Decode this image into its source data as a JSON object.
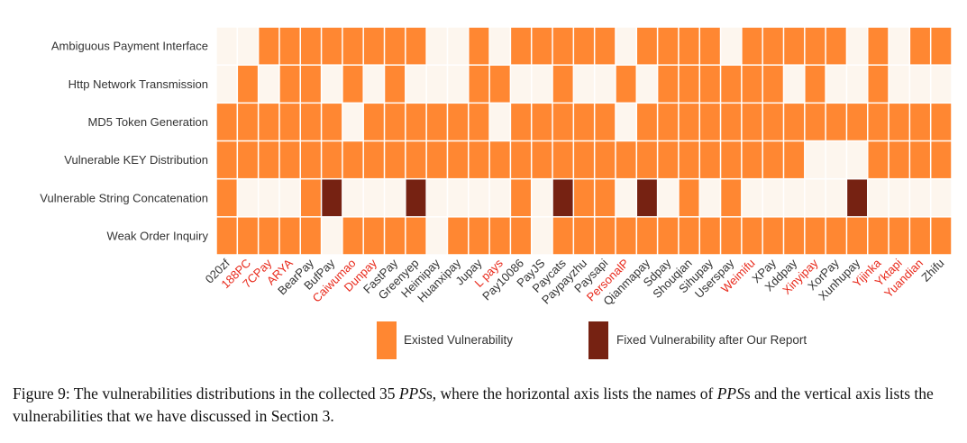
{
  "chart_data": {
    "type": "heatmap",
    "rows": [
      "Ambiguous Payment Interface",
      "Http Network Transmission",
      "MD5 Token Generation",
      "Vulnerable KEY Distribution",
      "Vulnerable String Concatenation",
      "Weak Order Inquiry"
    ],
    "columns": [
      {
        "name": "020zf",
        "highlight": false
      },
      {
        "name": "188PC",
        "highlight": true
      },
      {
        "name": "7CPay",
        "highlight": true
      },
      {
        "name": "ARYA",
        "highlight": true
      },
      {
        "name": "BearPay",
        "highlight": false
      },
      {
        "name": "BufPay",
        "highlight": false
      },
      {
        "name": "Caiwumao",
        "highlight": true
      },
      {
        "name": "Dunpay",
        "highlight": true
      },
      {
        "name": "FastPay",
        "highlight": false
      },
      {
        "name": "Greenyep",
        "highlight": false
      },
      {
        "name": "Heimipay",
        "highlight": false
      },
      {
        "name": "Huanxipay",
        "highlight": false
      },
      {
        "name": "Jupay",
        "highlight": false
      },
      {
        "name": "L pays",
        "highlight": true
      },
      {
        "name": "Pay10086",
        "highlight": false
      },
      {
        "name": "PayJS",
        "highlight": false
      },
      {
        "name": "Paycats",
        "highlight": false
      },
      {
        "name": "Paypayzhu",
        "highlight": false
      },
      {
        "name": "Paysapi",
        "highlight": false
      },
      {
        "name": "PersonalP",
        "highlight": true
      },
      {
        "name": "Qianmapay",
        "highlight": false
      },
      {
        "name": "Sdpay",
        "highlight": false
      },
      {
        "name": "Shouqian",
        "highlight": false
      },
      {
        "name": "Sihupay",
        "highlight": false
      },
      {
        "name": "Userspay",
        "highlight": false
      },
      {
        "name": "Weimifu",
        "highlight": true
      },
      {
        "name": "XPay",
        "highlight": false
      },
      {
        "name": "Xddpay",
        "highlight": false
      },
      {
        "name": "Xinyipay",
        "highlight": true
      },
      {
        "name": "XorPay",
        "highlight": false
      },
      {
        "name": "Xunhupay",
        "highlight": false
      },
      {
        "name": "Yijinka",
        "highlight": true
      },
      {
        "name": "Yktapi",
        "highlight": true
      },
      {
        "name": "Yuandian",
        "highlight": true
      },
      {
        "name": "Zhifu",
        "highlight": false
      }
    ],
    "matrix": [
      [
        0,
        0,
        1,
        1,
        1,
        1,
        1,
        1,
        1,
        1,
        0,
        0,
        1,
        0,
        1,
        1,
        1,
        1,
        1,
        0,
        1,
        1,
        1,
        1,
        0,
        1,
        1,
        1,
        1,
        1,
        0,
        1,
        0,
        1,
        1
      ],
      [
        0,
        1,
        0,
        1,
        1,
        0,
        1,
        0,
        1,
        0,
        0,
        0,
        1,
        1,
        0,
        0,
        1,
        0,
        0,
        1,
        0,
        1,
        1,
        1,
        1,
        1,
        1,
        0,
        1,
        0,
        0,
        1,
        0,
        0,
        0
      ],
      [
        1,
        1,
        1,
        1,
        1,
        1,
        0,
        1,
        1,
        1,
        1,
        1,
        1,
        0,
        1,
        1,
        1,
        1,
        1,
        0,
        1,
        1,
        1,
        1,
        1,
        1,
        1,
        1,
        1,
        1,
        1,
        1,
        1,
        1,
        1
      ],
      [
        1,
        1,
        1,
        1,
        1,
        1,
        1,
        1,
        1,
        1,
        1,
        1,
        1,
        1,
        1,
        1,
        1,
        1,
        1,
        1,
        1,
        1,
        1,
        1,
        1,
        1,
        1,
        1,
        0,
        0,
        0,
        1,
        1,
        1,
        1
      ],
      [
        1,
        0,
        0,
        0,
        1,
        2,
        0,
        0,
        0,
        2,
        0,
        0,
        0,
        0,
        1,
        0,
        2,
        1,
        1,
        0,
        2,
        0,
        1,
        0,
        1,
        0,
        0,
        0,
        0,
        0,
        2,
        0,
        0,
        0,
        0
      ],
      [
        1,
        1,
        1,
        1,
        1,
        0,
        1,
        1,
        1,
        1,
        0,
        1,
        1,
        1,
        1,
        0,
        1,
        1,
        1,
        1,
        1,
        1,
        1,
        1,
        1,
        1,
        1,
        1,
        1,
        1,
        1,
        1,
        1,
        1,
        1
      ]
    ],
    "value_meaning": {
      "0": "none",
      "1": "Existed Vulnerability",
      "2": "Fixed Vulnerability after Our Report"
    },
    "legend": [
      {
        "label": "Existed Vulnerability",
        "color": "#FF8732"
      },
      {
        "label": "Fixed Vulnerability after Our Report",
        "color": "#762212"
      }
    ],
    "legend_position": "bottom",
    "colors": {
      "existed": "#FF8732",
      "fixed": "#762212",
      "empty": "#FDF6EE",
      "highlight_label": "#E8281A",
      "normal_label": "#333333"
    }
  },
  "caption": {
    "prefix": "Figure 9: The vulnerabilities distributions in the collected 35 ",
    "pps": "PPS",
    "mid": "s, where the horizontal axis lists the names of ",
    "pps2": "PPS",
    "suffix": "s and the vertical axis lists the vulnerabilities that we have discussed in Section 3."
  }
}
